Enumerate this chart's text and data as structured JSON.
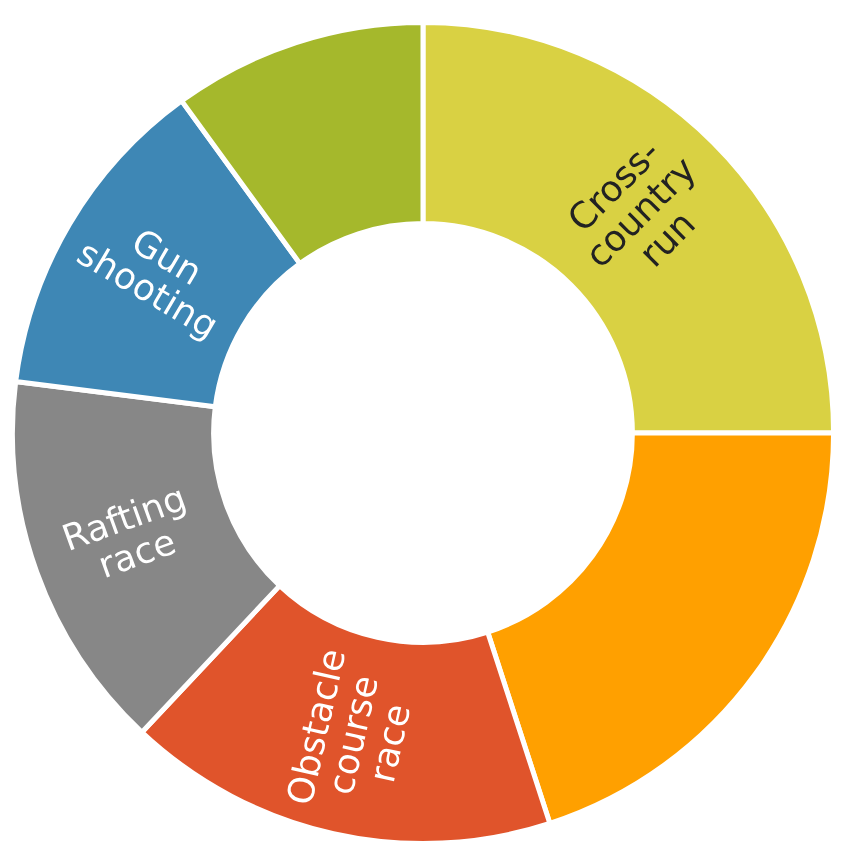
{
  "chart_data": {
    "type": "donut",
    "categories": [
      "Cross-\ncountry\nrun",
      null,
      "Obstacle\ncourse\nrace",
      "Rafting\nrace",
      "Gun\nshooting",
      null
    ],
    "values": [
      25,
      20,
      17,
      15,
      13,
      10
    ],
    "colors": [
      "#d9d143",
      "#ffa000",
      "#e0542b",
      "#878787",
      "#3e87b5",
      "#a5b82c"
    ],
    "legend": false
  }
}
